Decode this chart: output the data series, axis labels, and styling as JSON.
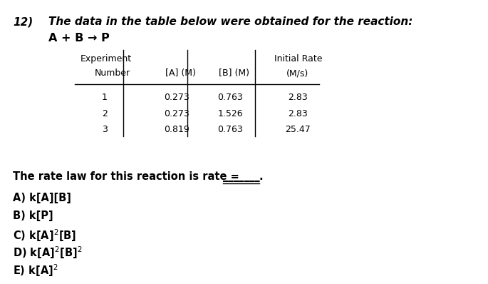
{
  "question_number": "12)",
  "title": "The data in the table below were obtained for the reaction:",
  "reaction": "A + B → P",
  "col_headers_row1": [
    "Experiment",
    "",
    "",
    "Initial Rate"
  ],
  "col_headers_row2": [
    "Number",
    "[A] (M)",
    "[B] (M)",
    "(M/s)"
  ],
  "table_data": [
    [
      "1",
      "0.273",
      "0.763",
      "2.83"
    ],
    [
      "2",
      "0.273",
      "1.526",
      "2.83"
    ],
    [
      "3",
      "0.819",
      "0.763",
      "25.47"
    ]
  ],
  "question_text_parts": [
    "The rate law for this reaction is rate = ",
    "_______",
    "."
  ],
  "choice_texts": [
    "A) k[A][B]",
    "B) k[P]",
    "C) k[A]$^{2}$[B]",
    "D) k[A]$^{2}$[B]$^{2}$",
    "E) k[A]$^{2}$"
  ],
  "bg_color": "#ffffff",
  "text_color": "#000000",
  "fig_width": 6.85,
  "fig_height": 3.98,
  "dpi": 100
}
